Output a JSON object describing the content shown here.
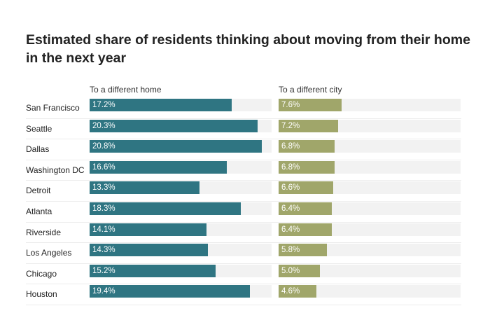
{
  "chart_data": {
    "type": "bar",
    "title": "Estimated share of residents thinking about moving from their home in the next year",
    "categories": [
      "San Francisco",
      "Seattle",
      "Dallas",
      "Washington DC",
      "Detroit",
      "Atlanta",
      "Riverside",
      "Los Angeles",
      "Chicago",
      "Houston"
    ],
    "series": [
      {
        "name": "To a different home",
        "color": "#2f7582",
        "values": [
          17.2,
          20.3,
          20.8,
          16.6,
          13.3,
          18.3,
          14.1,
          14.3,
          15.2,
          19.4
        ],
        "labels": [
          "17.2%",
          "20.3%",
          "20.8%",
          "16.6%",
          "13.3%",
          "18.3%",
          "14.1%",
          "14.3%",
          "15.2%",
          "19.4%"
        ]
      },
      {
        "name": "To a different city",
        "color": "#a0a66a",
        "values": [
          7.6,
          7.2,
          6.8,
          6.8,
          6.6,
          6.4,
          6.4,
          5.8,
          5.0,
          4.6
        ],
        "labels": [
          "7.6%",
          "7.2%",
          "6.8%",
          "6.8%",
          "6.6%",
          "6.4%",
          "6.4%",
          "5.8%",
          "5.0%",
          "4.6%"
        ]
      }
    ],
    "xlim": [
      0,
      22
    ],
    "track_color": "#f2f2f2"
  }
}
